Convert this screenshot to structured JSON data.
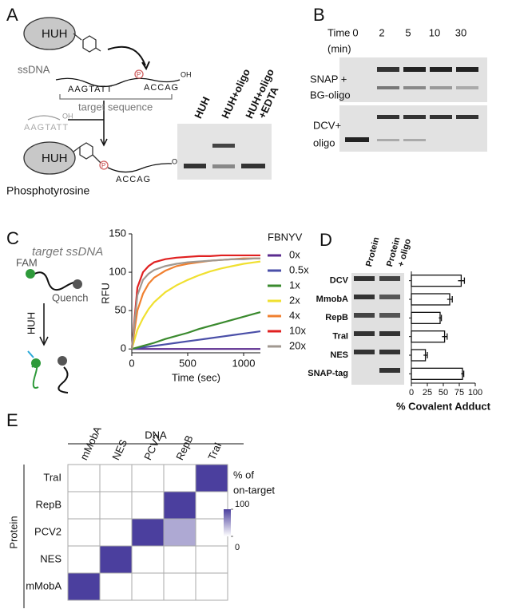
{
  "panel_labels": [
    "A",
    "B",
    "C",
    "D",
    "E"
  ],
  "panel_a": {
    "enzyme": "HUH",
    "ssdna": "ssDNA",
    "seq_left": "AAGTATT",
    "phospho": "P",
    "seq_right": "ACCAG",
    "oh": "OH",
    "target": "target sequence",
    "cleaved": "AAGTATT",
    "product": "Phosphotyrosine",
    "gel_lanes": [
      [
        "HUH"
      ],
      [
        "HUH+oligo"
      ],
      [
        "HUH+oligo",
        "+EDTA"
      ]
    ]
  },
  "panel_b": {
    "time_label": [
      "Time",
      "(min)"
    ],
    "times": [
      "0",
      "2",
      "5",
      "10",
      "30"
    ],
    "rows": [
      [
        "SNAP +",
        "BG-oligo"
      ],
      [
        "DCV+",
        "oligo"
      ]
    ]
  },
  "panel_c": {
    "probe": "target ssDNA",
    "fam": "FAM",
    "quench": "Quench",
    "enzyme": "HUH"
  },
  "panel_d": {
    "columns": [
      [
        "Protein"
      ],
      [
        "Protein",
        "+ oligo"
      ]
    ]
  },
  "chart_data": [
    {
      "type": "line",
      "ylabel": "RFU",
      "xlabel": "Time (sec)",
      "legend_title": "FBNYV",
      "xlim": [
        0,
        1150
      ],
      "ylim": [
        -5,
        150
      ],
      "xticks": [
        0,
        500,
        1000
      ],
      "yticks": [
        0,
        50,
        100,
        150
      ],
      "x": [
        0,
        50,
        100,
        150,
        200,
        300,
        400,
        500,
        600,
        700,
        800,
        900,
        1000,
        1100,
        1150
      ],
      "series": [
        {
          "name": "0x",
          "color": "#5b2c8f",
          "values": [
            0,
            0,
            0,
            0,
            0,
            0,
            0,
            0,
            0,
            0,
            0,
            0,
            0,
            0,
            0
          ]
        },
        {
          "name": "0.5x",
          "color": "#4a4fa8",
          "values": [
            0,
            1,
            2,
            3,
            4,
            6,
            8,
            10,
            12,
            14,
            16,
            18,
            20,
            22,
            23
          ]
        },
        {
          "name": "1x",
          "color": "#3a8a2e",
          "values": [
            0,
            2,
            4,
            6,
            8,
            13,
            17,
            21,
            26,
            30,
            34,
            38,
            42,
            46,
            48
          ]
        },
        {
          "name": "2x",
          "color": "#f0e030",
          "values": [
            0,
            25,
            40,
            52,
            61,
            74,
            83,
            90,
            96,
            101,
            105,
            108,
            111,
            113,
            114
          ]
        },
        {
          "name": "4x",
          "color": "#f08030",
          "values": [
            0,
            50,
            72,
            85,
            93,
            102,
            108,
            111,
            113,
            115,
            116,
            117,
            118,
            118,
            118
          ]
        },
        {
          "name": "10x",
          "color": "#e02020",
          "values": [
            0,
            80,
            100,
            108,
            113,
            117,
            119,
            120,
            121,
            121,
            122,
            122,
            122,
            122,
            122
          ]
        },
        {
          "name": "20x",
          "color": "#a09890",
          "values": [
            0,
            70,
            90,
            98,
            103,
            108,
            111,
            113,
            114,
            115,
            116,
            117,
            117,
            118,
            118
          ]
        }
      ]
    },
    {
      "type": "bar",
      "orientation": "horizontal",
      "xlabel": "% Covalent Adduct",
      "categories": [
        "DCV",
        "MmobA",
        "RepB",
        "TraI",
        "NES",
        "SNAP-tag"
      ],
      "values": [
        78,
        60,
        45,
        52,
        22,
        80
      ],
      "errors": [
        5,
        4,
        2,
        4,
        3,
        2
      ],
      "color": "#ffffff",
      "xlim": [
        0,
        100
      ],
      "xticks": [
        0,
        25,
        50,
        75,
        100
      ]
    },
    {
      "type": "heatmap",
      "x_title": "DNA",
      "y_title": "Protein",
      "x_categories": [
        "mMobA",
        "NES",
        "PCV2",
        "RepB",
        "TraI"
      ],
      "y_categories": [
        "TraI",
        "RepB",
        "PCV2",
        "NES",
        "mMobA"
      ],
      "values": [
        [
          0,
          0,
          0,
          0,
          100
        ],
        [
          0,
          0,
          0,
          100,
          0
        ],
        [
          0,
          0,
          100,
          45,
          0
        ],
        [
          0,
          100,
          0,
          0,
          0
        ],
        [
          100,
          0,
          0,
          0,
          0
        ]
      ],
      "zlim": [
        0,
        100
      ],
      "colors": [
        "#ffffff",
        "#4b3f9e"
      ],
      "colorbar_label": [
        "% of",
        "on-target"
      ],
      "colorbar_ticks": [
        0,
        100
      ]
    }
  ]
}
